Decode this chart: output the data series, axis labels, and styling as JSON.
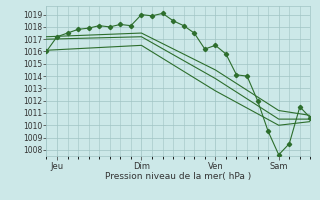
{
  "title": "",
  "xlabel": "Pression niveau de la mer( hPa )",
  "bg_color": "#cce8e8",
  "grid_color": "#a0c4c4",
  "line_color": "#2d6e2d",
  "ylim": [
    1007.5,
    1019.7
  ],
  "x_tick_labels": [
    "Jeu",
    "Dim",
    "Ven",
    "Sam"
  ],
  "x_tick_positions": [
    1,
    9,
    16,
    22
  ],
  "xlim": [
    0,
    25
  ],
  "series": [
    {
      "x": [
        0,
        1,
        2,
        3,
        4,
        5,
        6,
        7,
        8,
        9,
        10,
        11,
        12,
        13,
        14,
        15,
        16,
        17,
        18,
        19,
        20,
        21,
        22,
        23,
        24,
        25
      ],
      "y": [
        1016.0,
        1017.2,
        1017.5,
        1017.8,
        1017.9,
        1018.1,
        1018.0,
        1018.2,
        1018.1,
        1019.0,
        1018.9,
        1019.1,
        1018.5,
        1018.1,
        1017.5,
        1016.2,
        1016.5,
        1015.8,
        1014.1,
        1014.0,
        1012.0,
        1009.5,
        1007.6,
        1008.5,
        1011.5,
        1010.6
      ],
      "has_markers": true
    },
    {
      "x": [
        0,
        9,
        16,
        22,
        25
      ],
      "y": [
        1017.2,
        1017.5,
        1014.5,
        1011.2,
        1010.8
      ],
      "has_markers": false
    },
    {
      "x": [
        0,
        9,
        16,
        22,
        25
      ],
      "y": [
        1017.0,
        1017.2,
        1013.8,
        1010.5,
        1010.5
      ],
      "has_markers": false
    },
    {
      "x": [
        0,
        9,
        16,
        22,
        25
      ],
      "y": [
        1016.1,
        1016.5,
        1012.8,
        1010.0,
        1010.3
      ],
      "has_markers": false
    }
  ]
}
